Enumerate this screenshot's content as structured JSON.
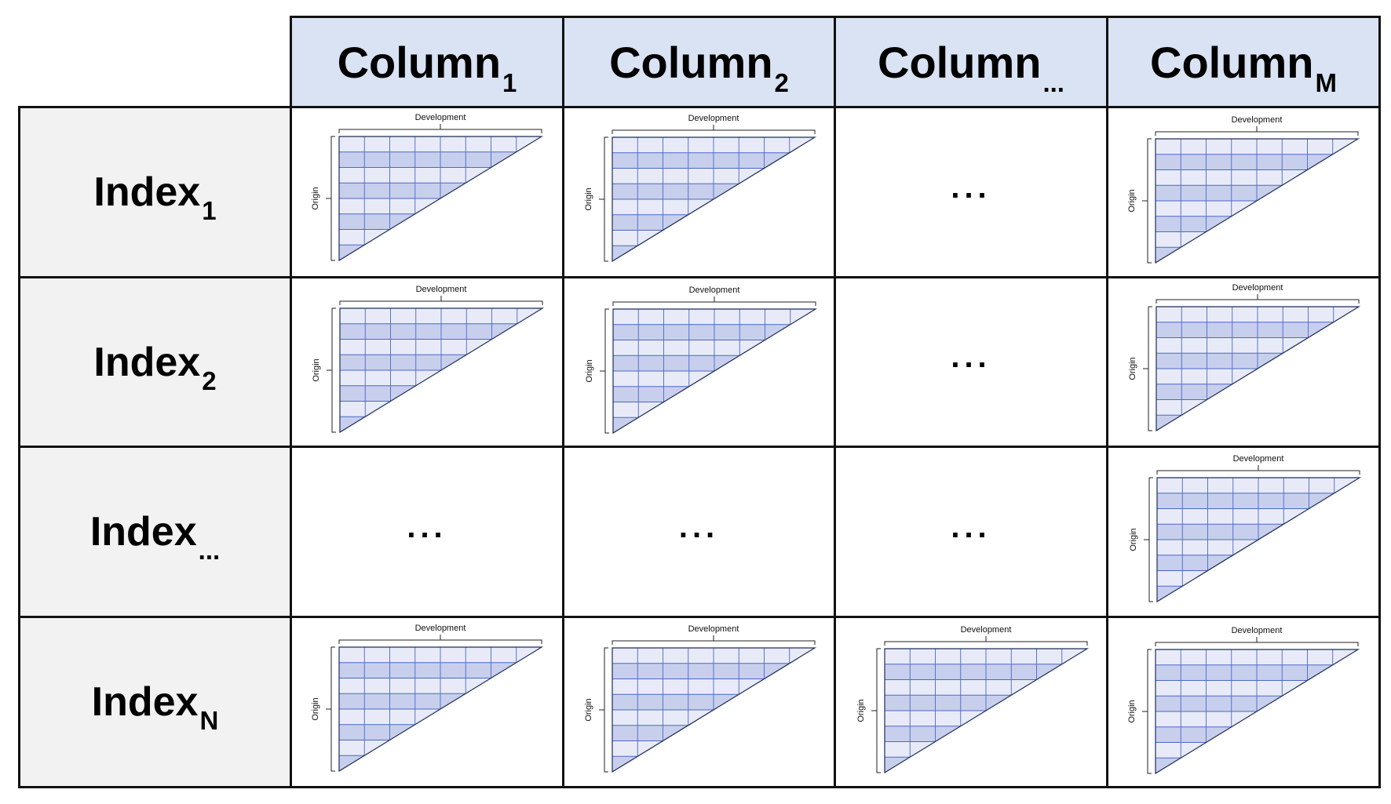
{
  "columns": [
    {
      "name": "Column",
      "sub": "1"
    },
    {
      "name": "Column",
      "sub": "2"
    },
    {
      "name": "Column",
      "sub": "..."
    },
    {
      "name": "Column",
      "sub": "M"
    }
  ],
  "rows": [
    {
      "name": "Index",
      "sub": "1"
    },
    {
      "name": "Index",
      "sub": "2"
    },
    {
      "name": "Index",
      "sub": "..."
    },
    {
      "name": "Index",
      "sub": "N"
    }
  ],
  "ellipsis": "...",
  "triangle": {
    "development_label": "Development",
    "origin_label": "Origin",
    "grid_columns": 8,
    "grid_rows": 8,
    "fill_color": "#e8ebf7",
    "band_color": "#c8cfec",
    "line_color": "#4a68c8"
  },
  "cells": [
    [
      "triangle",
      "triangle",
      "ellipsis",
      "triangle"
    ],
    [
      "triangle",
      "triangle",
      "ellipsis",
      "triangle"
    ],
    [
      "ellipsis",
      "ellipsis",
      "ellipsis",
      "triangle"
    ],
    [
      "triangle",
      "triangle",
      "triangle",
      "triangle"
    ]
  ]
}
